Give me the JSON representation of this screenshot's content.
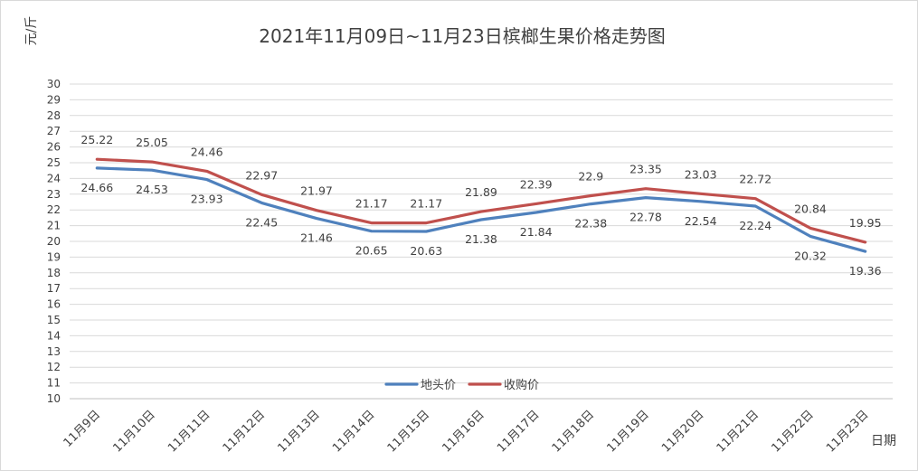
{
  "chart_data": {
    "type": "line",
    "title": "2021年11月09日~11月23日槟榔生果价格走势图",
    "ylabel": "元/斤",
    "xlabel": "日期",
    "ylim": [
      10,
      30
    ],
    "y_ticks": [
      10,
      11,
      12,
      13,
      14,
      15,
      16,
      17,
      18,
      19,
      20,
      21,
      22,
      23,
      24,
      25,
      26,
      27,
      28,
      29,
      30
    ],
    "grid": true,
    "legend_position": "bottom-center",
    "categories": [
      "11月9日",
      "11月10日",
      "11月11日",
      "11月12日",
      "11月13日",
      "11月14日",
      "11月15日",
      "11月16日",
      "11月17日",
      "11月18日",
      "11月19日",
      "11月20日",
      "11月21日",
      "11月22日",
      "11月23日"
    ],
    "series": [
      {
        "name": "地头价",
        "color": "#4f81bd",
        "label_position": "below",
        "values": [
          24.66,
          24.53,
          23.93,
          22.45,
          21.46,
          20.65,
          20.63,
          21.38,
          21.84,
          22.38,
          22.78,
          22.54,
          22.24,
          20.32,
          19.36
        ],
        "labels": [
          "24.66",
          "24.53",
          "23.93",
          "22.45",
          "21.46",
          "20.65",
          "20.63",
          "21.38",
          "21.84",
          "22.38",
          "22.78",
          "22.54",
          "22.24",
          "20.32",
          "19.36"
        ]
      },
      {
        "name": "收购价",
        "color": "#c0504d",
        "label_position": "above",
        "values": [
          25.22,
          25.05,
          24.46,
          22.97,
          21.97,
          21.17,
          21.17,
          21.89,
          22.39,
          22.9,
          23.35,
          23.03,
          22.72,
          20.84,
          19.95
        ],
        "labels": [
          "25.22",
          "25.05",
          "24.46",
          "22.97",
          "21.97",
          "21.17",
          "21.17",
          "21.89",
          "22.39",
          "22.9",
          "23.35",
          "23.03",
          "22.72",
          "20.84",
          "19.95"
        ]
      }
    ]
  }
}
